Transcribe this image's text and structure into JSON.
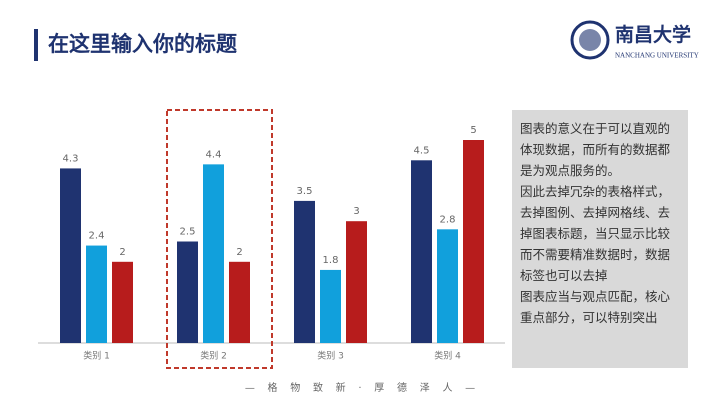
{
  "header": {
    "title": "在这里输入你的标题",
    "logo_name": "南昌大学",
    "logo_subtitle": "NANCHANG UNIVERSITY"
  },
  "chart_data": {
    "type": "bar",
    "categories": [
      "类别 1",
      "类别 2",
      "类别 3",
      "类别 4"
    ],
    "series": [
      {
        "color": "#1f3370",
        "values": [
          4.3,
          2.5,
          3.5,
          4.5
        ]
      },
      {
        "color": "#11a0dc",
        "values": [
          2.4,
          4.4,
          1.8,
          2.8
        ]
      },
      {
        "color": "#b71c1c",
        "values": [
          2,
          2,
          3,
          5
        ]
      }
    ]
  },
  "note": {
    "paragraphs": [
      "图表的意义在于可以直观的体现数据，而所有的数据都是为观点服务的。",
      "因此去掉冗杂的表格样式，去掉图例、去掉网格线、去掉图表标题，当只显示比较而不需要精准数据时，数据标签也可以去掉",
      "图表应当与观点匹配，核心重点部分，可以特别突出"
    ]
  },
  "footer": {
    "motto": "—    格    物    致    新    ·    厚    德    泽    人    —"
  }
}
